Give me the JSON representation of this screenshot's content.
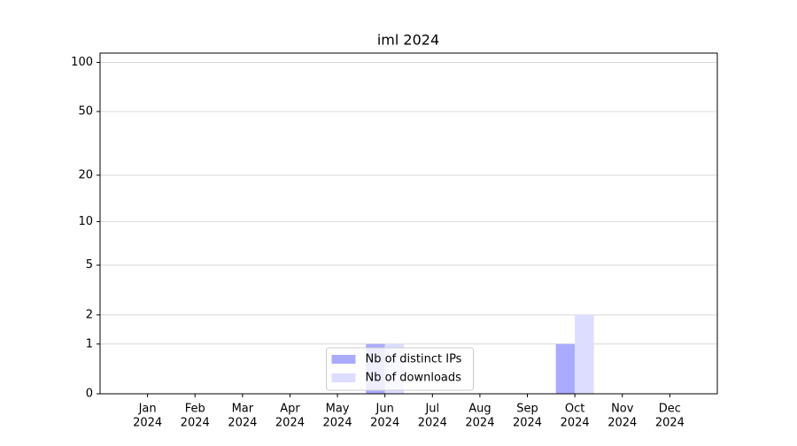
{
  "chart_data": {
    "type": "bar",
    "title": "iml 2024",
    "categories": [
      [
        "Jan",
        "2024"
      ],
      [
        "Feb",
        "2024"
      ],
      [
        "Mar",
        "2024"
      ],
      [
        "Apr",
        "2024"
      ],
      [
        "May",
        "2024"
      ],
      [
        "Jun",
        "2024"
      ],
      [
        "Jul",
        "2024"
      ],
      [
        "Aug",
        "2024"
      ],
      [
        "Sep",
        "2024"
      ],
      [
        "Oct",
        "2024"
      ],
      [
        "Nov",
        "2024"
      ],
      [
        "Dec",
        "2024"
      ]
    ],
    "series": [
      {
        "name": "Nb of distinct IPs",
        "color": "#aaaaff",
        "values": [
          0,
          0,
          0,
          0,
          0,
          1,
          0,
          0,
          0,
          1,
          0,
          0
        ]
      },
      {
        "name": "Nb of downloads",
        "color": "#ddddff",
        "values": [
          0,
          0,
          0,
          0,
          0,
          1,
          0,
          0,
          0,
          2,
          0,
          0
        ]
      }
    ],
    "yscale": "log1p",
    "ylim": [
      0,
      114
    ],
    "yticks": [
      0,
      1,
      2,
      5,
      10,
      20,
      50,
      100
    ],
    "grid": true,
    "legend": "lower center"
  }
}
